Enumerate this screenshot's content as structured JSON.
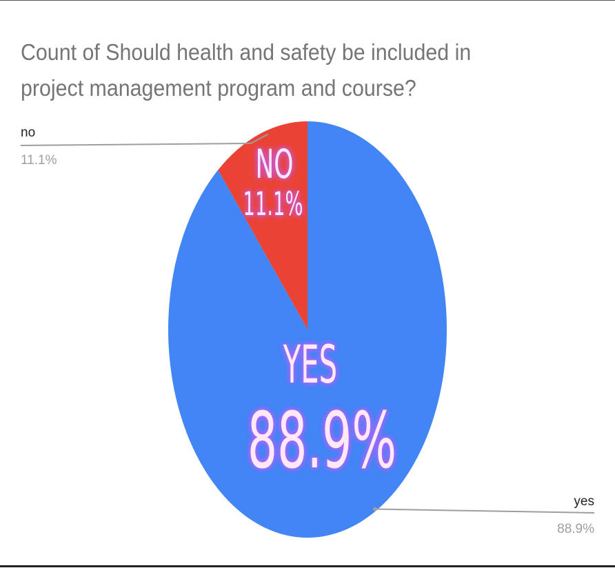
{
  "chart_data": {
    "type": "pie",
    "title": "Count of Should health and safety be included in project management program and course?",
    "slices": [
      {
        "name": "no",
        "value": 11.1,
        "percent_label": "11.1%",
        "overlay_name": "NO",
        "overlay_percent": "11.1%",
        "color": "#ea4335"
      },
      {
        "name": "yes",
        "value": 88.9,
        "percent_label": "88.9%",
        "overlay_name": "YES",
        "overlay_percent": "88.9%",
        "color": "#4285f4"
      }
    ],
    "start": "top",
    "direction": "counterclockwise-from-top for no, clockwise for yes",
    "legend": "none",
    "label_style": "outside labels with leader lines plus large glowing overlay text"
  },
  "colors": {
    "title_text": "#757575",
    "label_name": "#222222",
    "label_percent": "#9e9e9e",
    "leader_line": "#9e9e9e",
    "overlay_text": "#ffe9f6",
    "overlay_glow": "#c45cff"
  }
}
